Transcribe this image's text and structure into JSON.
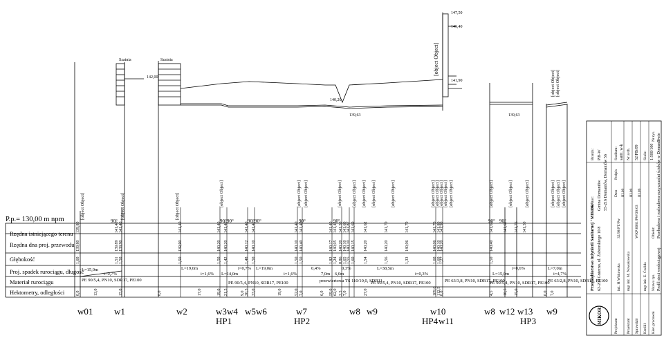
{
  "datum": "P.p.= 130,00 m npm",
  "band_titles": [
    "Rzędna istniejącego terenu",
    "Rzędna dna proj. przewodu",
    "Głębokość",
    "Proj. spadek rurociągu, długość",
    "Materiał rurociągu",
    "Hektometry, odległości"
  ],
  "node_labels": [
    {
      "text": "w01"
    },
    {
      "text": "w1"
    },
    {
      "text": "w2"
    },
    {
      "text": "w3"
    },
    {
      "text": "w4"
    },
    {
      "text": "HP1"
    },
    {
      "text": "w5"
    },
    {
      "text": "w6"
    },
    {
      "text": "w7"
    },
    {
      "text": "HP2"
    },
    {
      "text": "w8"
    },
    {
      "text": "w9"
    },
    {
      "text": "w10"
    },
    {
      "text": "HP4"
    },
    {
      "text": "w11"
    },
    {
      "text": "w8"
    },
    {
      "text": "w12"
    },
    {
      "text": "w13"
    },
    {
      "text": "HP3"
    },
    {
      "text": "w9"
    }
  ],
  "vertical_labels": [
    {
      "text": "Istniejąca sieć wodociągowa wA150"
    },
    {
      "text": "Wyjście do budynku socjalnego"
    },
    {
      "text": "Wyjście z budynku socjalnego"
    },
    {
      "text": "Hydrant p.poż. Ø80mm - nadziemny"
    },
    {
      "text": "Hydrant p.poż. Ø80mm - nadziemny"
    },
    {
      "text": "Kan. sanitarna PVC200"
    },
    {
      "text": "Przepust pod rowem L=9,0m"
    },
    {
      "text": "Trójnik"
    },
    {
      "text": "Kan. sanitarna PVC250"
    },
    {
      "text": "Przyłącze do budynku technicznego"
    },
    {
      "text": "Rur. tłoczny ścieków PE160"
    },
    {
      "text": "Hydrant p.poż. Ø80mm - nadziemny"
    },
    {
      "text": "Kb. energetyczny wod. Ø300mm"
    },
    {
      "text": "Kan. sanitarna PVC200"
    },
    {
      "text": "St. odwodniająca bet. Ø1000mm"
    },
    {
      "text": "Wejście na reaktor biologiczny"
    },
    {
      "text": "Trójnik"
    },
    {
      "text": "Kan. sanitarna PVC250"
    },
    {
      "text": "Hydrant p.poż. Ø80mm - nadziemny"
    },
    {
      "text": "Proj. sieć wodociągowa PE90"
    },
    {
      "text": "Kan. sanitarna PVC200"
    },
    {
      "text": "Wyjście do budynku technicznego"
    },
    {
      "text": "Rur. wody technologicznej PE63"
    },
    {
      "text": "Rur. wody technologicznej PE63"
    },
    {
      "text": "Osadnik wtórny"
    }
  ],
  "elev_ground": [
    "139,80",
    "141,40",
    "141,40",
    "141,40",
    "141,40",
    "141,40",
    "141,40",
    "141,40",
    "141,40",
    "141,40",
    "141,40",
    "141,45",
    "141,50",
    "141,60",
    "141,87",
    "141,69",
    "141,62",
    "141,70",
    "141,70",
    "141,70",
    "141,80",
    "141,90",
    "141,65",
    "141,60",
    "141,76",
    "141,50"
  ],
  "elev_bottom": [
    "139,80",
    "139,89",
    "139,90",
    "139,90",
    "140,20",
    "140,20",
    "140,12",
    "140,10",
    "140,10",
    "140,40",
    "140,17",
    "140,05",
    "140,20",
    "140,10",
    "140,10",
    "140,15",
    "140,20",
    "140,20",
    "140,06",
    "140,06",
    "140,10",
    "140,20",
    "140,40"
  ],
  "depths": [
    "1,60",
    "1,51",
    "1,50",
    "1,50",
    "1,50",
    "1,42",
    "1,48",
    "1,50",
    "1,50",
    "1,50",
    "1,82",
    "1,24",
    "0,86",
    "1,65",
    "1,55",
    "1,60",
    "1,54",
    "1,56",
    "1,33",
    "1,60",
    "1,60",
    "1,27",
    "1,50"
  ],
  "slopes": [
    {
      "len": "L=15,0m",
      "i": "i=0,7%"
    },
    {
      "len": "L=19,0m",
      "i": "i=1,6%"
    },
    {
      "len": "L=14,0m",
      "i": "i=0,7%"
    },
    {
      "len": "L=19,0m",
      "i": "i=1,6%"
    },
    {
      "len": "0,4%",
      "i": "7,0m"
    },
    {
      "len": "0,3%",
      "i": "6,0m"
    },
    {
      "len": "L=38,5m",
      "i": "i=0,3%"
    },
    {
      "len": "L=15,0m",
      "i": "i=0,6%"
    },
    {
      "len": "L=7,0m",
      "i": "i=4,7%"
    }
  ],
  "materials": [
    {
      "text": "PE 90/5,4, PN10, SDR17, PE100"
    },
    {
      "text": "PE 90/5,4, PN10, SDR17, PE100"
    },
    {
      "text": "przewiertowa TS 110/10,0, SDR11"
    },
    {
      "text": "PE 90/5,4, PN10, SDR17, PE100"
    },
    {
      "text": "PE 63/3,8, PN10, SDR17, PE100"
    },
    {
      "text": "PE 90/5,4, PN10, SDR17, PE100"
    },
    {
      "text": "PE 63/2,8, PN10, SDR17, PE100"
    }
  ],
  "distances": [
    "0,0",
    "13,0",
    "15,0",
    "0,0",
    "17,0",
    "19,0",
    "21,5",
    "9,0",
    "30,5",
    "33,0",
    "19,0",
    "52,0",
    "7,0",
    "6,0",
    "59,0",
    "62,0",
    "3,5",
    "7,0",
    "27,0",
    "109,0",
    "112,5",
    "0,0",
    "4,5",
    "10,5",
    "15,0",
    "0,0",
    "7,0"
  ],
  "elev_marks": [
    "142,00",
    "147,50",
    "146,40",
    "141,90",
    "140,20",
    "139,63",
    "139,63"
  ],
  "header_words": [
    "Szatnia",
    "Szatnia"
  ],
  "angle_marks": [
    "90°",
    "90°",
    "90°",
    "90°",
    "90°",
    "90°",
    "90°",
    "90°",
    "90°"
  ],
  "title_block": {
    "client_label": "Inwestor:",
    "client": "Gmina Domaniów",
    "address": "55-216 Domaniów, Domaniów 56",
    "office": "Przedsiębiorstwo Inżynierii Sanitarnej \"MIKOR\"",
    "office_addr": "62-200 Gniezno, ul. Żabiorskiego 10/8",
    "role_labels": [
      "Projektant",
      "Projektant",
      "Sprawdził",
      "Kreślił",
      "Kier. pracowni"
    ],
    "people": [
      "inż. H.Witkowska",
      "mgr inż. M. Nowakowska",
      "mgr inż. E. Ćwikła"
    ],
    "permits": [
      "32/98/PT/Pw",
      "WKP/0081/PWOS/03"
    ],
    "dates": [
      "III.09",
      "III.09",
      "III.09"
    ],
    "branch_label": "Branża:",
    "branch": "P.B-W",
    "stage_label": "Stadium:",
    "stage": "sanit. w-k",
    "drawing_label": "Nr rys.",
    "drawing_no": "7",
    "arch_label": "Nr arch.",
    "arch_no": "52/PB/09",
    "scale_label": "Skala:",
    "scale": "1:500/100",
    "name_label": "Nazwa rys.",
    "name": "Profil sieci wodociągowej",
    "object_label": "Obiekt:",
    "object": "Przebudowa i rozbudowa oczyszczalni ścieków w Domaniowie",
    "date_col": "Data",
    "sign_col": "Podpis"
  },
  "logo": "MIKOR"
}
